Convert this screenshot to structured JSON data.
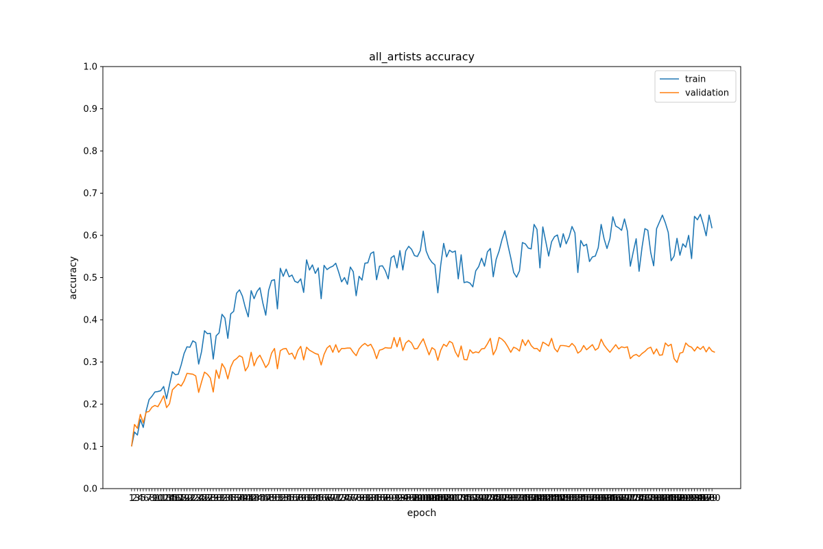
{
  "chart_data": {
    "type": "line",
    "title": "all_artists accuracy",
    "xlabel": "epoch",
    "ylabel": "accuracy",
    "ylim": [
      0.0,
      1.0
    ],
    "yticks": [
      "0.0",
      "0.1",
      "0.2",
      "0.3",
      "0.4",
      "0.5",
      "0.6",
      "0.7",
      "0.8",
      "0.9",
      "1.0"
    ],
    "xlim": [
      1,
      200
    ],
    "grid": false,
    "legend": "top-right",
    "series": [
      {
        "name": "train",
        "color": "#1f77b4",
        "values": [
          0.1,
          0.134,
          0.127,
          0.164,
          0.145,
          0.184,
          0.211,
          0.219,
          0.229,
          0.23,
          0.232,
          0.242,
          0.213,
          0.246,
          0.277,
          0.27,
          0.271,
          0.293,
          0.32,
          0.336,
          0.335,
          0.35,
          0.346,
          0.295,
          0.325,
          0.374,
          0.367,
          0.368,
          0.307,
          0.362,
          0.369,
          0.413,
          0.404,
          0.356,
          0.414,
          0.42,
          0.463,
          0.471,
          0.456,
          0.429,
          0.407,
          0.469,
          0.45,
          0.467,
          0.476,
          0.44,
          0.411,
          0.47,
          0.493,
          0.495,
          0.426,
          0.522,
          0.503,
          0.52,
          0.502,
          0.506,
          0.491,
          0.488,
          0.497,
          0.465,
          0.542,
          0.518,
          0.53,
          0.51,
          0.523,
          0.45,
          0.529,
          0.519,
          0.524,
          0.527,
          0.534,
          0.513,
          0.49,
          0.5,
          0.484,
          0.525,
          0.514,
          0.457,
          0.503,
          0.494,
          0.534,
          0.535,
          0.557,
          0.561,
          0.495,
          0.527,
          0.528,
          0.516,
          0.497,
          0.547,
          0.552,
          0.523,
          0.564,
          0.518,
          0.563,
          0.574,
          0.567,
          0.552,
          0.55,
          0.564,
          0.61,
          0.563,
          0.546,
          0.536,
          0.53,
          0.464,
          0.53,
          0.581,
          0.549,
          0.565,
          0.56,
          0.563,
          0.497,
          0.554,
          0.488,
          0.49,
          0.487,
          0.478,
          0.516,
          0.526,
          0.546,
          0.527,
          0.561,
          0.569,
          0.502,
          0.543,
          0.563,
          0.59,
          0.611,
          0.578,
          0.547,
          0.512,
          0.501,
          0.516,
          0.583,
          0.58,
          0.57,
          0.568,
          0.626,
          0.614,
          0.523,
          0.62,
          0.586,
          0.551,
          0.585,
          0.597,
          0.601,
          0.572,
          0.604,
          0.58,
          0.596,
          0.621,
          0.606,
          0.512,
          0.588,
          0.575,
          0.579,
          0.538,
          0.549,
          0.551,
          0.571,
          0.626,
          0.592,
          0.569,
          0.592,
          0.644,
          0.622,
          0.618,
          0.612,
          0.639,
          0.61,
          0.527,
          0.561,
          0.592,
          0.515,
          0.571,
          0.616,
          0.612,
          0.559,
          0.528,
          0.616,
          0.632,
          0.648,
          0.63,
          0.607,
          0.54,
          0.551,
          0.593,
          0.553,
          0.58,
          0.572,
          0.6,
          0.545,
          0.645,
          0.637,
          0.65,
          0.627,
          0.599,
          0.648,
          0.617
        ]
      },
      {
        "name": "validation",
        "color": "#ff7f0e",
        "values": [
          0.1,
          0.152,
          0.143,
          0.176,
          0.156,
          0.181,
          0.183,
          0.193,
          0.197,
          0.194,
          0.206,
          0.22,
          0.192,
          0.201,
          0.234,
          0.241,
          0.248,
          0.243,
          0.255,
          0.273,
          0.272,
          0.271,
          0.267,
          0.228,
          0.253,
          0.276,
          0.271,
          0.262,
          0.229,
          0.281,
          0.261,
          0.296,
          0.285,
          0.26,
          0.288,
          0.303,
          0.308,
          0.315,
          0.311,
          0.279,
          0.29,
          0.323,
          0.291,
          0.308,
          0.316,
          0.302,
          0.287,
          0.296,
          0.321,
          0.332,
          0.284,
          0.327,
          0.331,
          0.332,
          0.318,
          0.321,
          0.307,
          0.327,
          0.337,
          0.305,
          0.335,
          0.328,
          0.324,
          0.32,
          0.318,
          0.293,
          0.318,
          0.333,
          0.339,
          0.323,
          0.341,
          0.323,
          0.332,
          0.332,
          0.333,
          0.333,
          0.323,
          0.315,
          0.331,
          0.339,
          0.344,
          0.338,
          0.342,
          0.329,
          0.308,
          0.328,
          0.33,
          0.334,
          0.333,
          0.333,
          0.358,
          0.336,
          0.358,
          0.327,
          0.345,
          0.351,
          0.345,
          0.331,
          0.332,
          0.344,
          0.355,
          0.336,
          0.317,
          0.334,
          0.329,
          0.304,
          0.328,
          0.342,
          0.337,
          0.349,
          0.345,
          0.324,
          0.312,
          0.338,
          0.306,
          0.305,
          0.329,
          0.321,
          0.324,
          0.322,
          0.331,
          0.332,
          0.343,
          0.356,
          0.317,
          0.33,
          0.358,
          0.354,
          0.347,
          0.336,
          0.323,
          0.335,
          0.332,
          0.326,
          0.353,
          0.339,
          0.352,
          0.339,
          0.332,
          0.332,
          0.325,
          0.347,
          0.343,
          0.338,
          0.356,
          0.332,
          0.324,
          0.339,
          0.339,
          0.338,
          0.336,
          0.344,
          0.337,
          0.321,
          0.326,
          0.339,
          0.329,
          0.335,
          0.341,
          0.328,
          0.333,
          0.354,
          0.34,
          0.331,
          0.323,
          0.332,
          0.341,
          0.331,
          0.336,
          0.334,
          0.336,
          0.308,
          0.315,
          0.318,
          0.313,
          0.32,
          0.325,
          0.332,
          0.335,
          0.319,
          0.331,
          0.316,
          0.317,
          0.345,
          0.338,
          0.342,
          0.308,
          0.299,
          0.321,
          0.323,
          0.345,
          0.338,
          0.335,
          0.326,
          0.336,
          0.33,
          0.337,
          0.324,
          0.335,
          0.326,
          0.323
        ]
      }
    ]
  }
}
